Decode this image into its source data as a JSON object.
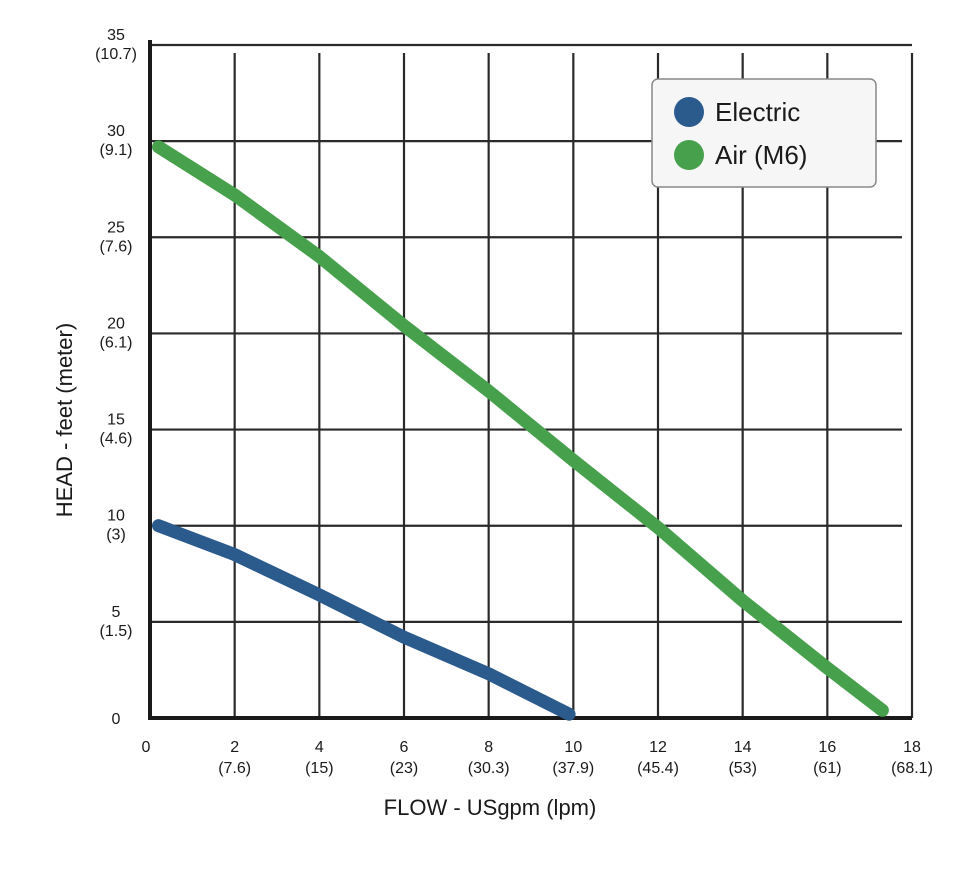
{
  "chart_data": {
    "type": "line",
    "title": "",
    "xlabel": "FLOW - USgpm (lpm)",
    "ylabel": "HEAD - feet (meter)",
    "xlim": [
      0,
      18
    ],
    "ylim": [
      0,
      35
    ],
    "grid": true,
    "legend_position": "top-right",
    "x_ticks": [
      {
        "value": 0,
        "label": "0",
        "sub": ""
      },
      {
        "value": 2,
        "label": "2",
        "sub": "(7.6)"
      },
      {
        "value": 4,
        "label": "4",
        "sub": "(15)"
      },
      {
        "value": 6,
        "label": "6",
        "sub": "(23)"
      },
      {
        "value": 8,
        "label": "8",
        "sub": "(30.3)"
      },
      {
        "value": 10,
        "label": "10",
        "sub": "(37.9)"
      },
      {
        "value": 12,
        "label": "12",
        "sub": "(45.4)"
      },
      {
        "value": 14,
        "label": "14",
        "sub": "(53)"
      },
      {
        "value": 16,
        "label": "16",
        "sub": "(61)"
      },
      {
        "value": 18,
        "label": "18",
        "sub": "(68.1)"
      }
    ],
    "y_ticks": [
      {
        "value": 0,
        "label": "0",
        "sub": ""
      },
      {
        "value": 5,
        "label": "5",
        "sub": "(1.5)"
      },
      {
        "value": 10,
        "label": "10",
        "sub": "(3)"
      },
      {
        "value": 15,
        "label": "15",
        "sub": "(4.6)"
      },
      {
        "value": 20,
        "label": "20",
        "sub": "(6.1)"
      },
      {
        "value": 25,
        "label": "25",
        "sub": "(7.6)"
      },
      {
        "value": 30,
        "label": "30",
        "sub": "(9.1)"
      },
      {
        "value": 35,
        "label": "35",
        "sub": "(10.7)"
      }
    ],
    "series": [
      {
        "name": "Electric",
        "color": "#2b5a8c",
        "x": [
          0.2,
          2,
          4,
          6,
          8,
          9.9
        ],
        "y": [
          10.0,
          8.5,
          6.4,
          4.2,
          2.3,
          0.2
        ]
      },
      {
        "name": "Air (M6)",
        "color": "#47a04c",
        "x": [
          0.2,
          2,
          4,
          6,
          8,
          10,
          12,
          14,
          16,
          17.3
        ],
        "y": [
          29.7,
          27.2,
          24.0,
          20.4,
          17.0,
          13.4,
          9.9,
          6.1,
          2.6,
          0.4
        ]
      }
    ]
  }
}
